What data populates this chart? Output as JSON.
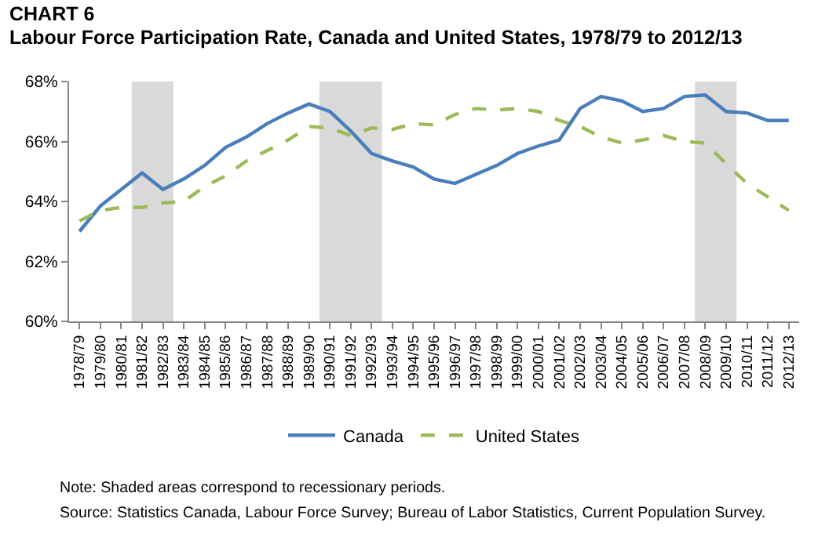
{
  "chart_data": {
    "type": "line",
    "title": "CHART 6",
    "subtitle": "Labour Force Participation Rate, Canada and United States, 1978/79 to 2012/13",
    "categories": [
      "1978/79",
      "1979/80",
      "1980/81",
      "1981/82",
      "1982/83",
      "1983/84",
      "1984/85",
      "1985/86",
      "1986/87",
      "1987/88",
      "1988/89",
      "1989/90",
      "1990/91",
      "1991/92",
      "1992/93",
      "1993/94",
      "1994/95",
      "1995/96",
      "1996/97",
      "1997/98",
      "1998/99",
      "1999/00",
      "2000/01",
      "2001/02",
      "2002/03",
      "2003/04",
      "2004/05",
      "2005/06",
      "2006/07",
      "2007/08",
      "2008/09",
      "2009/10",
      "2010/11",
      "2011/12",
      "2012/13"
    ],
    "series": [
      {
        "name": "Canada",
        "color": "#4a7ebb",
        "line_style": "solid",
        "values": [
          63.0,
          63.85,
          64.4,
          64.95,
          64.4,
          64.75,
          65.2,
          65.8,
          66.15,
          66.6,
          66.95,
          67.25,
          67.0,
          66.35,
          65.6,
          65.35,
          65.15,
          64.75,
          64.6,
          64.9,
          65.2,
          65.6,
          65.85,
          66.05,
          67.1,
          67.5,
          67.35,
          67.0,
          67.1,
          67.5,
          67.55,
          67.0,
          66.95,
          66.7,
          66.7
        ]
      },
      {
        "name": "United States",
        "color": "#9bbb59",
        "line_style": "dashed",
        "values": [
          63.35,
          63.7,
          63.8,
          63.8,
          63.95,
          64.0,
          64.5,
          64.85,
          65.35,
          65.7,
          66.05,
          66.5,
          66.45,
          66.2,
          66.45,
          66.4,
          66.6,
          66.55,
          66.9,
          67.1,
          67.05,
          67.1,
          67.0,
          66.7,
          66.5,
          66.15,
          65.95,
          66.05,
          66.2,
          66.0,
          65.95,
          65.25,
          64.6,
          64.15,
          63.7
        ]
      }
    ],
    "ylim": [
      60,
      68
    ],
    "yticks": [
      {
        "value": 60,
        "label": "60%"
      },
      {
        "value": 62,
        "label": "62%"
      },
      {
        "value": 64,
        "label": "64%"
      },
      {
        "value": 66,
        "label": "66%"
      },
      {
        "value": 68,
        "label": "68%"
      }
    ],
    "bands": [
      {
        "axis": "x",
        "from": "1981/82",
        "to": "1982/83",
        "color": "#d9d9d9"
      },
      {
        "axis": "x",
        "from": "1990/91",
        "to": "1992/93",
        "color": "#d9d9d9"
      },
      {
        "axis": "x",
        "from": "2008/09",
        "to": "2009/10",
        "color": "#d9d9d9"
      }
    ],
    "annotations": [
      "Note: Shaded areas correspond  to recessionary periods.",
      "Source: Statistics Canada, Labour Force Survey; Bureau of Labor Statistics, Current Population Survey."
    ],
    "grid": false,
    "legend": "bottom",
    "marker": "none"
  }
}
